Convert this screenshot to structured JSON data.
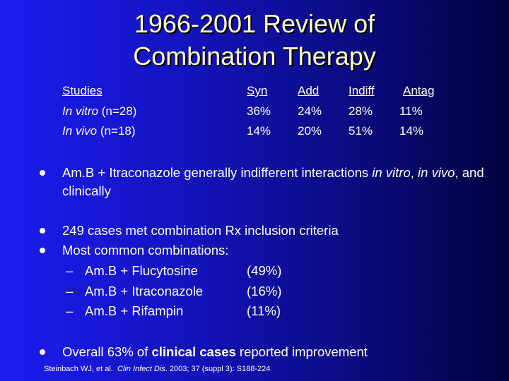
{
  "title_lines": [
    "1966-2001 Review of",
    "Combination Therapy"
  ],
  "table": {
    "header": [
      "Studies",
      "Syn",
      "Add",
      "Indiff",
      "Antag"
    ],
    "rows": [
      {
        "label": [
          {
            "text": "In vitro",
            "italic": true
          },
          {
            "text": " (n=28)"
          }
        ],
        "values": [
          "36%",
          "24%",
          "28%",
          "11%"
        ]
      },
      {
        "label": [
          {
            "text": "In vivo",
            "italic": true
          },
          {
            "text": " (n=18)"
          }
        ],
        "values": [
          "14%",
          "20%",
          "51%",
          "14%"
        ]
      }
    ]
  },
  "bullets": [
    {
      "runs": [
        {
          "text": "Am.B + Itraconazole generally indifferent interactions "
        },
        {
          "text": "in vitro",
          "italic": true
        },
        {
          "text": ", "
        },
        {
          "text": "in vivo",
          "italic": true
        },
        {
          "text": ", and clinically"
        }
      ]
    },
    {
      "runs": [
        {
          "text": "249 cases met combination Rx inclusion criteria"
        }
      ]
    },
    {
      "runs": [
        {
          "text": "Most common combinations:"
        }
      ],
      "sub": [
        {
          "dash": "–",
          "text": "Am.B + Flucytosine",
          "pct": "(49%)"
        },
        {
          "dash": "–",
          "text": "Am.B + Itraconazole",
          "pct": "(16%)"
        },
        {
          "dash": "–",
          "text": "Am.B + Rifampin",
          "pct": "(11%)"
        }
      ]
    },
    {
      "runs": [
        {
          "text": "Overall 63% of "
        },
        {
          "text": "clinical cases",
          "bold": true
        },
        {
          "text": " reported improvement"
        }
      ]
    }
  ],
  "citation": [
    {
      "text": "Steinbach WJ, et al.  "
    },
    {
      "text": "Clin Infect Dis",
      "italic": true
    },
    {
      "text": ". 2003; 37 (suppl 3): S188-224"
    }
  ]
}
